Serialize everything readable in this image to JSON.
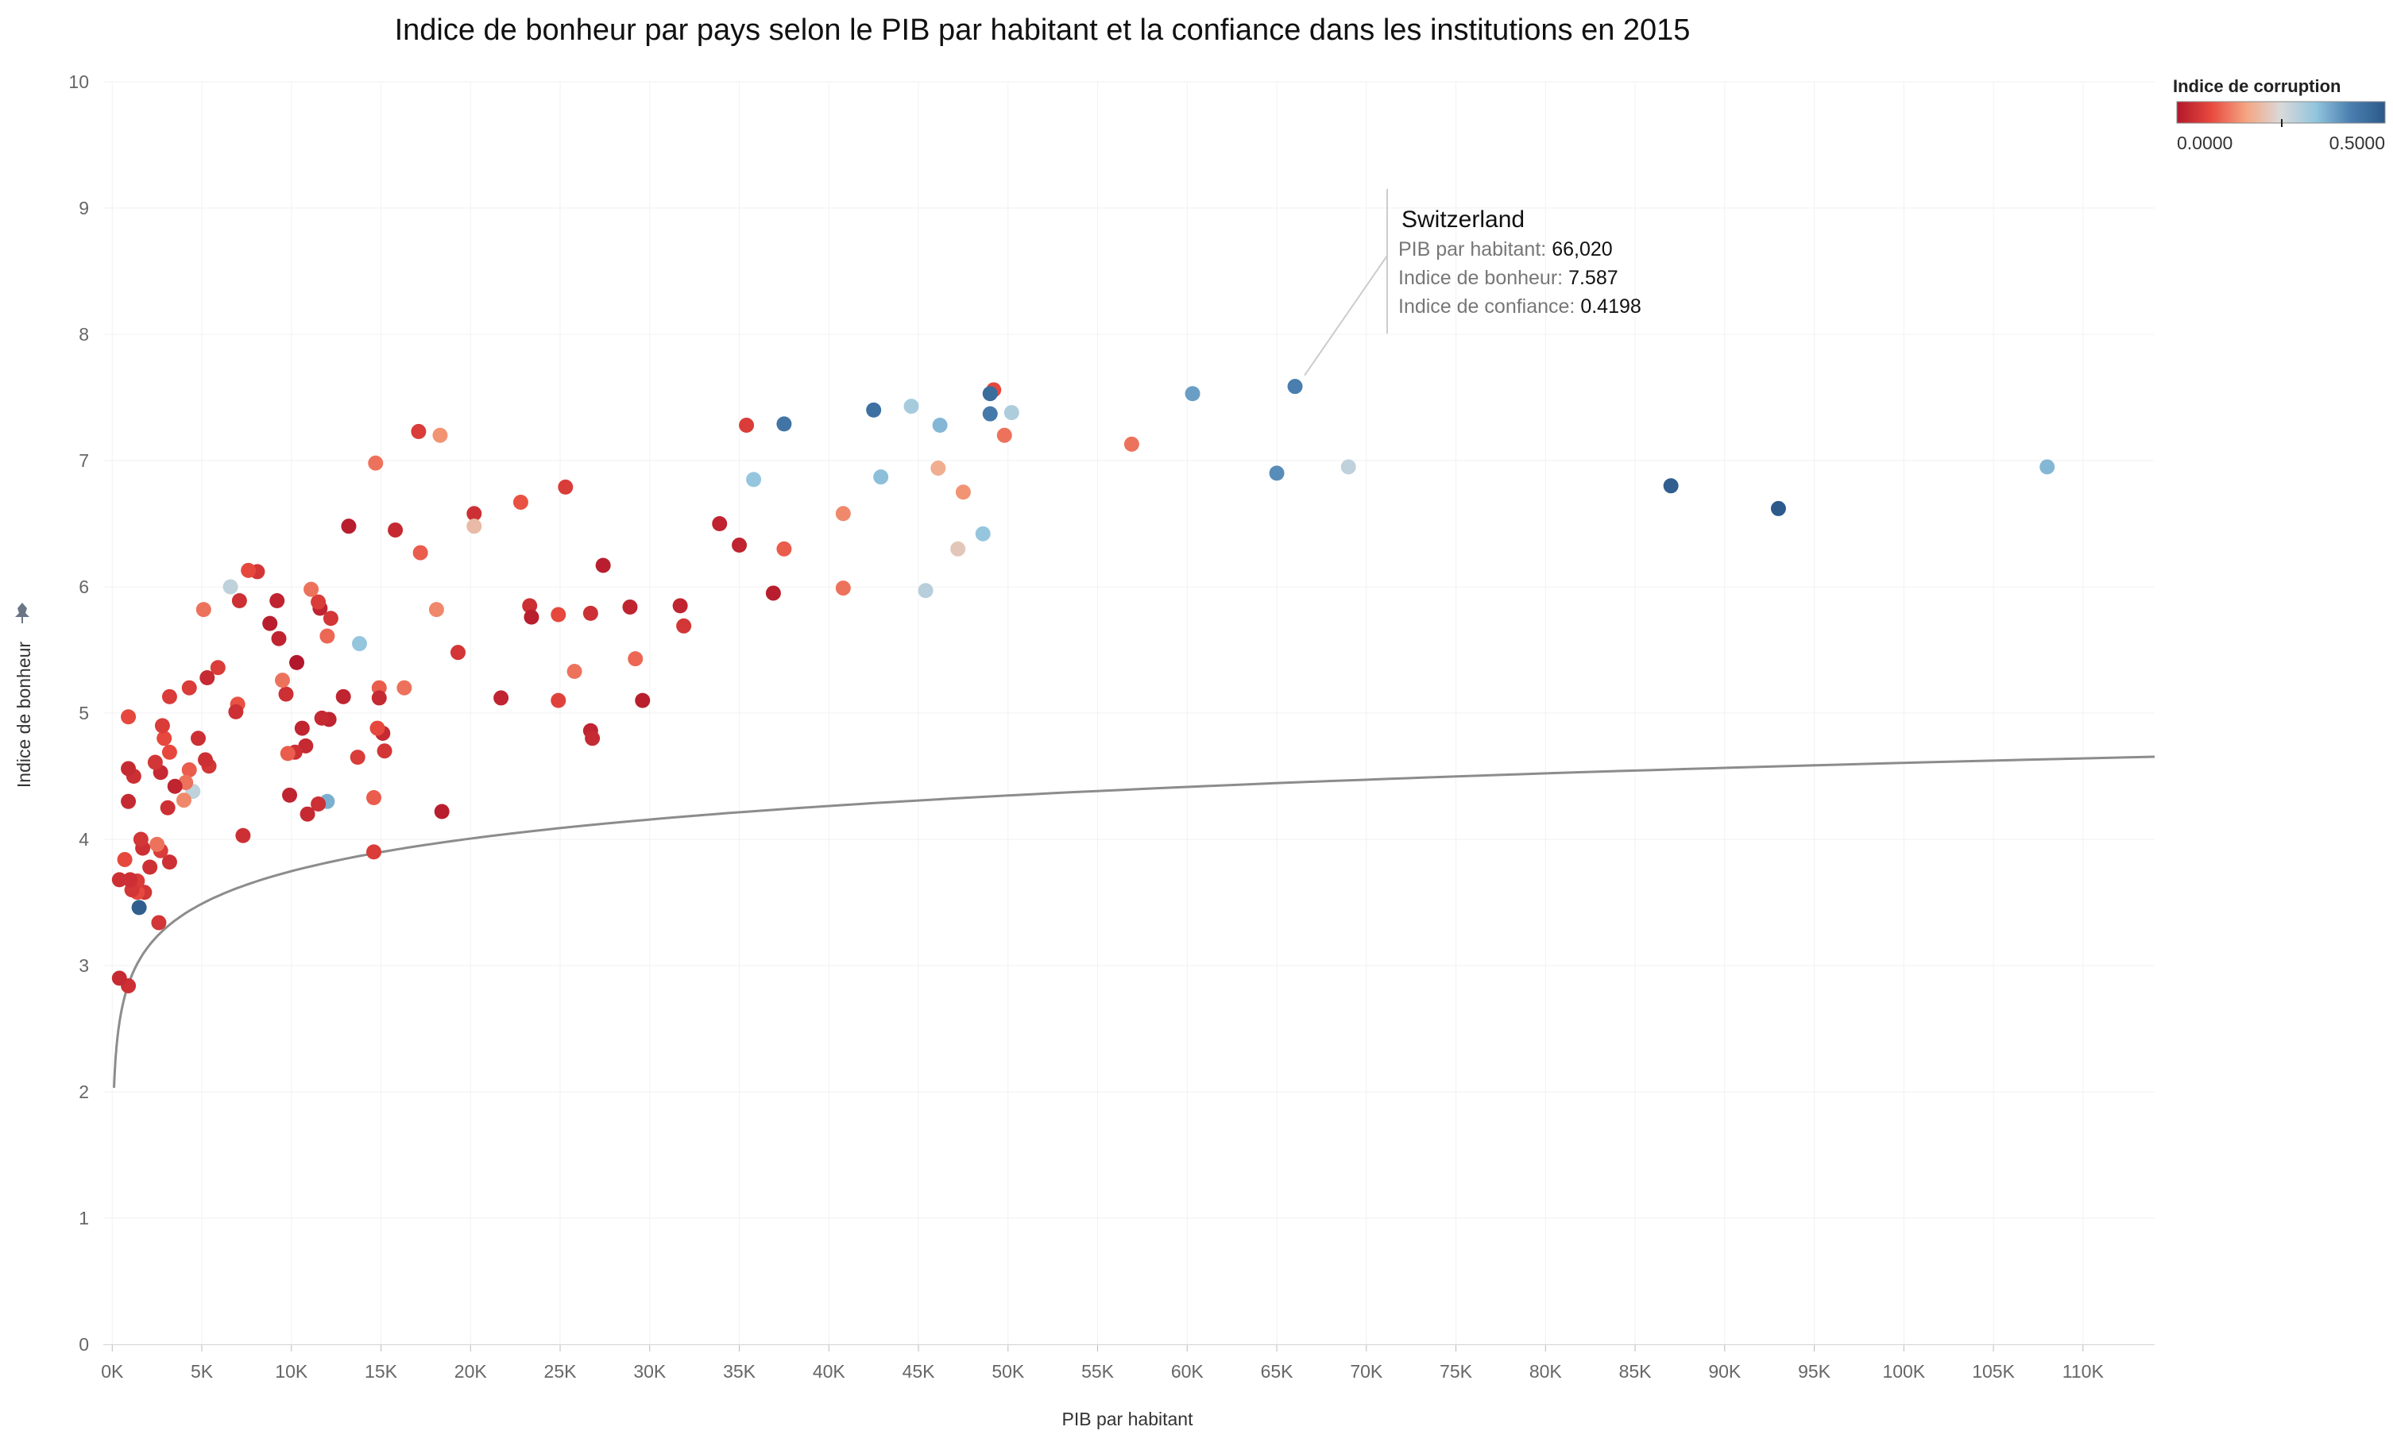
{
  "chart_data": {
    "type": "scatter",
    "title": "Indice de bonheur par pays selon le PIB par habitant et la confiance dans les institutions en 2015",
    "xlabel": "PIB par habitant",
    "ylabel": "Indice de bonheur",
    "xlim": [
      -500,
      114000
    ],
    "ylim": [
      0,
      10
    ],
    "x_ticks": [
      {
        "value": 0,
        "label": "0K"
      },
      {
        "value": 5000,
        "label": "5K"
      },
      {
        "value": 10000,
        "label": "10K"
      },
      {
        "value": 15000,
        "label": "15K"
      },
      {
        "value": 20000,
        "label": "20K"
      },
      {
        "value": 25000,
        "label": "25K"
      },
      {
        "value": 30000,
        "label": "30K"
      },
      {
        "value": 35000,
        "label": "35K"
      },
      {
        "value": 40000,
        "label": "40K"
      },
      {
        "value": 45000,
        "label": "45K"
      },
      {
        "value": 50000,
        "label": "50K"
      },
      {
        "value": 55000,
        "label": "55K"
      },
      {
        "value": 60000,
        "label": "60K"
      },
      {
        "value": 65000,
        "label": "65K"
      },
      {
        "value": 70000,
        "label": "70K"
      },
      {
        "value": 75000,
        "label": "75K"
      },
      {
        "value": 80000,
        "label": "80K"
      },
      {
        "value": 85000,
        "label": "85K"
      },
      {
        "value": 90000,
        "label": "90K"
      },
      {
        "value": 95000,
        "label": "95K"
      },
      {
        "value": 100000,
        "label": "100K"
      },
      {
        "value": 105000,
        "label": "105K"
      },
      {
        "value": 110000,
        "label": "110K"
      }
    ],
    "y_ticks": [
      0,
      1,
      2,
      3,
      4,
      5,
      6,
      7,
      8,
      9,
      10
    ],
    "grid": true,
    "trend_line": {
      "type": "logarithmic",
      "x_range": [
        100,
        114000
      ],
      "coefficients": {
        "a": 2.89,
        "b": 0.3725
      }
    },
    "color_legend": {
      "title": "Indice de corruption",
      "min_label": "0.0000",
      "max_label": "0.5000",
      "min": 0,
      "max": 0.5,
      "colors": [
        "#b2182b",
        "#e84a3e",
        "#f4a582",
        "#d9d9d9",
        "#92c5de",
        "#4a7fb0",
        "#2c5a8a"
      ],
      "position": "top-right"
    },
    "annotation": {
      "title": "Switzerland",
      "target": {
        "x": 66020,
        "y": 7.587
      },
      "lines": [
        {
          "label": "PIB par habitant: ",
          "value": "66,020"
        },
        {
          "label": "Indice de bonheur: ",
          "value": "7.587"
        },
        {
          "label": "Indice de confiance: ",
          "value": "0.4198"
        }
      ]
    },
    "points": [
      {
        "x": 66020,
        "y": 7.587,
        "c": 0.42
      },
      {
        "x": 108000,
        "y": 6.95,
        "c": 0.35
      },
      {
        "x": 93000,
        "y": 6.62,
        "c": 0.5
      },
      {
        "x": 87000,
        "y": 6.8,
        "c": 0.49
      },
      {
        "x": 69000,
        "y": 6.95,
        "c": 0.28
      },
      {
        "x": 65000,
        "y": 6.9,
        "c": 0.4
      },
      {
        "x": 60300,
        "y": 7.53,
        "c": 0.38
      },
      {
        "x": 56900,
        "y": 7.13,
        "c": 0.12
      },
      {
        "x": 50200,
        "y": 7.38,
        "c": 0.3
      },
      {
        "x": 49800,
        "y": 7.2,
        "c": 0.12
      },
      {
        "x": 49200,
        "y": 7.56,
        "c": 0.08
      },
      {
        "x": 49000,
        "y": 7.53,
        "c": 0.46
      },
      {
        "x": 49000,
        "y": 7.37,
        "c": 0.43
      },
      {
        "x": 48600,
        "y": 6.42,
        "c": 0.33
      },
      {
        "x": 47200,
        "y": 6.3,
        "c": 0.22
      },
      {
        "x": 47500,
        "y": 6.75,
        "c": 0.15
      },
      {
        "x": 46100,
        "y": 6.94,
        "c": 0.18
      },
      {
        "x": 46200,
        "y": 7.28,
        "c": 0.35
      },
      {
        "x": 45400,
        "y": 5.97,
        "c": 0.29
      },
      {
        "x": 44600,
        "y": 7.43,
        "c": 0.31
      },
      {
        "x": 42900,
        "y": 6.87,
        "c": 0.34
      },
      {
        "x": 42500,
        "y": 7.4,
        "c": 0.45
      },
      {
        "x": 40800,
        "y": 6.58,
        "c": 0.14
      },
      {
        "x": 40800,
        "y": 5.99,
        "c": 0.12
      },
      {
        "x": 37500,
        "y": 7.29,
        "c": 0.44
      },
      {
        "x": 37500,
        "y": 6.3,
        "c": 0.1
      },
      {
        "x": 35800,
        "y": 6.85,
        "c": 0.33
      },
      {
        "x": 35400,
        "y": 7.28,
        "c": 0.06
      },
      {
        "x": 35000,
        "y": 6.33,
        "c": 0.02
      },
      {
        "x": 36900,
        "y": 5.95,
        "c": 0.01
      },
      {
        "x": 33900,
        "y": 6.5,
        "c": 0.02
      },
      {
        "x": 31700,
        "y": 5.85,
        "c": 0.02
      },
      {
        "x": 31900,
        "y": 5.69,
        "c": 0.05
      },
      {
        "x": 29600,
        "y": 5.1,
        "c": 0.01
      },
      {
        "x": 29200,
        "y": 5.43,
        "c": 0.11
      },
      {
        "x": 28900,
        "y": 5.84,
        "c": 0.02
      },
      {
        "x": 27400,
        "y": 6.17,
        "c": 0.01
      },
      {
        "x": 26700,
        "y": 5.79,
        "c": 0.04
      },
      {
        "x": 26700,
        "y": 4.86,
        "c": 0.02
      },
      {
        "x": 26800,
        "y": 4.8,
        "c": 0.03
      },
      {
        "x": 25800,
        "y": 5.33,
        "c": 0.12
      },
      {
        "x": 25300,
        "y": 6.79,
        "c": 0.06
      },
      {
        "x": 24900,
        "y": 5.1,
        "c": 0.07
      },
      {
        "x": 24900,
        "y": 5.78,
        "c": 0.08
      },
      {
        "x": 23300,
        "y": 5.85,
        "c": 0.04
      },
      {
        "x": 23400,
        "y": 5.76,
        "c": 0.01
      },
      {
        "x": 22800,
        "y": 6.67,
        "c": 0.09
      },
      {
        "x": 21700,
        "y": 5.12,
        "c": 0.02
      },
      {
        "x": 20200,
        "y": 6.58,
        "c": 0.04
      },
      {
        "x": 20200,
        "y": 6.48,
        "c": 0.2
      },
      {
        "x": 19300,
        "y": 5.48,
        "c": 0.05
      },
      {
        "x": 18400,
        "y": 4.22,
        "c": 0.01
      },
      {
        "x": 18300,
        "y": 7.2,
        "c": 0.15
      },
      {
        "x": 18100,
        "y": 5.82,
        "c": 0.14
      },
      {
        "x": 17100,
        "y": 7.23,
        "c": 0.06
      },
      {
        "x": 17200,
        "y": 6.27,
        "c": 0.1
      },
      {
        "x": 16300,
        "y": 5.2,
        "c": 0.12
      },
      {
        "x": 15800,
        "y": 6.45,
        "c": 0.03
      },
      {
        "x": 15200,
        "y": 4.7,
        "c": 0.05
      },
      {
        "x": 15100,
        "y": 4.84,
        "c": 0.03
      },
      {
        "x": 14900,
        "y": 5.2,
        "c": 0.1
      },
      {
        "x": 14900,
        "y": 5.12,
        "c": 0.03
      },
      {
        "x": 14800,
        "y": 4.88,
        "c": 0.08
      },
      {
        "x": 14700,
        "y": 6.98,
        "c": 0.12
      },
      {
        "x": 14600,
        "y": 4.33,
        "c": 0.1
      },
      {
        "x": 14600,
        "y": 3.9,
        "c": 0.06
      },
      {
        "x": 13800,
        "y": 5.55,
        "c": 0.33
      },
      {
        "x": 13700,
        "y": 4.65,
        "c": 0.06
      },
      {
        "x": 13200,
        "y": 6.48,
        "c": 0.01
      },
      {
        "x": 12900,
        "y": 5.13,
        "c": 0.02
      },
      {
        "x": 12200,
        "y": 5.75,
        "c": 0.05
      },
      {
        "x": 12000,
        "y": 5.61,
        "c": 0.11
      },
      {
        "x": 12100,
        "y": 4.95,
        "c": 0.02
      },
      {
        "x": 12000,
        "y": 4.3,
        "c": 0.36
      },
      {
        "x": 11700,
        "y": 4.96,
        "c": 0.03
      },
      {
        "x": 11600,
        "y": 5.83,
        "c": 0.02
      },
      {
        "x": 11500,
        "y": 4.28,
        "c": 0.04
      },
      {
        "x": 11500,
        "y": 5.88,
        "c": 0.06
      },
      {
        "x": 11100,
        "y": 5.98,
        "c": 0.12
      },
      {
        "x": 10800,
        "y": 4.74,
        "c": 0.03
      },
      {
        "x": 10600,
        "y": 4.88,
        "c": 0.02
      },
      {
        "x": 10900,
        "y": 4.2,
        "c": 0.03
      },
      {
        "x": 10300,
        "y": 5.4,
        "c": 0.0
      },
      {
        "x": 10200,
        "y": 4.69,
        "c": 0.04
      },
      {
        "x": 9800,
        "y": 4.68,
        "c": 0.1
      },
      {
        "x": 9900,
        "y": 4.35,
        "c": 0.02
      },
      {
        "x": 9700,
        "y": 5.15,
        "c": 0.04
      },
      {
        "x": 9500,
        "y": 5.26,
        "c": 0.12
      },
      {
        "x": 9300,
        "y": 5.59,
        "c": 0.02
      },
      {
        "x": 9200,
        "y": 5.89,
        "c": 0.02
      },
      {
        "x": 8800,
        "y": 5.71,
        "c": 0.01
      },
      {
        "x": 8100,
        "y": 6.12,
        "c": 0.05
      },
      {
        "x": 7600,
        "y": 6.13,
        "c": 0.08
      },
      {
        "x": 7300,
        "y": 4.03,
        "c": 0.04
      },
      {
        "x": 7100,
        "y": 5.89,
        "c": 0.04
      },
      {
        "x": 7000,
        "y": 5.07,
        "c": 0.09
      },
      {
        "x": 6900,
        "y": 5.01,
        "c": 0.04
      },
      {
        "x": 6600,
        "y": 6.0,
        "c": 0.28
      },
      {
        "x": 5900,
        "y": 5.36,
        "c": 0.06
      },
      {
        "x": 5400,
        "y": 4.58,
        "c": 0.05
      },
      {
        "x": 5300,
        "y": 5.28,
        "c": 0.03
      },
      {
        "x": 5200,
        "y": 4.63,
        "c": 0.04
      },
      {
        "x": 5100,
        "y": 5.82,
        "c": 0.12
      },
      {
        "x": 4800,
        "y": 4.8,
        "c": 0.04
      },
      {
        "x": 4500,
        "y": 4.38,
        "c": 0.28
      },
      {
        "x": 4300,
        "y": 5.2,
        "c": 0.06
      },
      {
        "x": 4300,
        "y": 4.55,
        "c": 0.1
      },
      {
        "x": 4100,
        "y": 4.45,
        "c": 0.12
      },
      {
        "x": 4000,
        "y": 4.31,
        "c": 0.14
      },
      {
        "x": 3500,
        "y": 4.42,
        "c": 0.02
      },
      {
        "x": 3200,
        "y": 5.13,
        "c": 0.06
      },
      {
        "x": 3200,
        "y": 4.69,
        "c": 0.08
      },
      {
        "x": 3100,
        "y": 4.25,
        "c": 0.04
      },
      {
        "x": 3200,
        "y": 3.82,
        "c": 0.04
      },
      {
        "x": 2900,
        "y": 4.8,
        "c": 0.08
      },
      {
        "x": 2800,
        "y": 4.9,
        "c": 0.06
      },
      {
        "x": 2700,
        "y": 4.53,
        "c": 0.03
      },
      {
        "x": 2700,
        "y": 3.91,
        "c": 0.06
      },
      {
        "x": 2600,
        "y": 3.34,
        "c": 0.05
      },
      {
        "x": 2500,
        "y": 3.96,
        "c": 0.12
      },
      {
        "x": 2400,
        "y": 4.61,
        "c": 0.05
      },
      {
        "x": 2100,
        "y": 3.78,
        "c": 0.04
      },
      {
        "x": 1800,
        "y": 3.58,
        "c": 0.05
      },
      {
        "x": 1700,
        "y": 3.93,
        "c": 0.04
      },
      {
        "x": 1600,
        "y": 4.0,
        "c": 0.05
      },
      {
        "x": 1500,
        "y": 3.46,
        "c": 0.49
      },
      {
        "x": 1400,
        "y": 3.58,
        "c": 0.08
      },
      {
        "x": 1400,
        "y": 3.67,
        "c": 0.06
      },
      {
        "x": 1200,
        "y": 4.5,
        "c": 0.04
      },
      {
        "x": 1100,
        "y": 3.6,
        "c": 0.05
      },
      {
        "x": 1000,
        "y": 3.68,
        "c": 0.04
      },
      {
        "x": 900,
        "y": 4.56,
        "c": 0.03
      },
      {
        "x": 900,
        "y": 4.3,
        "c": 0.03
      },
      {
        "x": 900,
        "y": 4.97,
        "c": 0.08
      },
      {
        "x": 900,
        "y": 2.84,
        "c": 0.04
      },
      {
        "x": 700,
        "y": 3.84,
        "c": 0.08
      },
      {
        "x": 400,
        "y": 3.68,
        "c": 0.04
      },
      {
        "x": 400,
        "y": 2.9,
        "c": 0.03
      }
    ]
  }
}
